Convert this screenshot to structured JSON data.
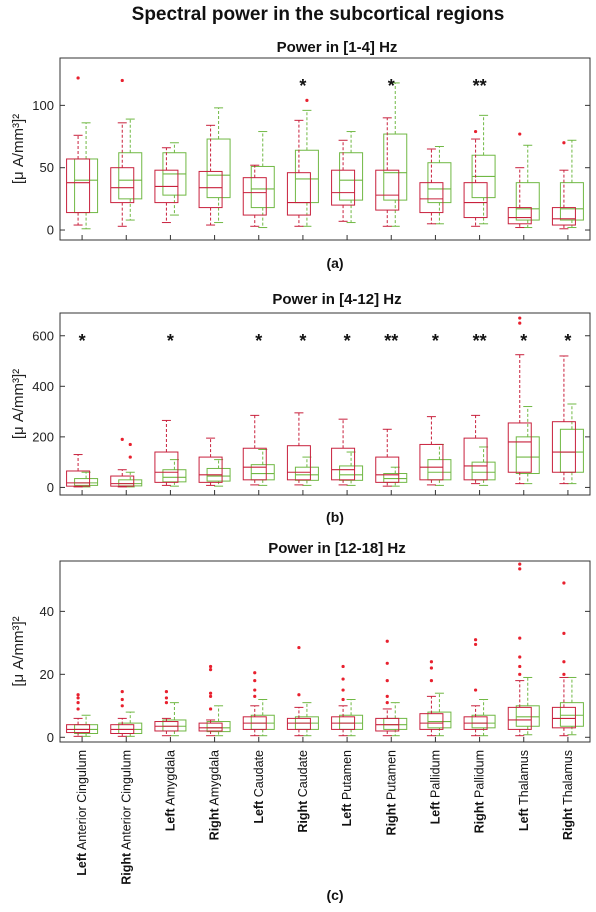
{
  "figure": {
    "title": "Spectral power in the subcortical regions"
  },
  "colors": {
    "group_a": "#70b844",
    "group_b": "#c8203c",
    "outlier": "#e8202e",
    "axis": "#333333",
    "text": "#111111"
  },
  "chart_data": [
    {
      "type": "box",
      "panel_label": "(a)",
      "title": "Power in [1-4] Hz",
      "ylabel": "[μ A/mm³]²",
      "ylim": [
        -8,
        138
      ],
      "yticks": [
        0,
        50,
        100
      ],
      "categories": [
        {
          "prefix": "Left",
          "name": "Anterior Cingulum"
        },
        {
          "prefix": "Right",
          "name": "Anterior Cingulum"
        },
        {
          "prefix": "Left",
          "name": "Amygdala"
        },
        {
          "prefix": "Right",
          "name": "Amygdala"
        },
        {
          "prefix": "Left",
          "name": "Caudate"
        },
        {
          "prefix": "Right",
          "name": "Caudate"
        },
        {
          "prefix": "Left",
          "name": "Putamen"
        },
        {
          "prefix": "Right",
          "name": "Putamen"
        },
        {
          "prefix": "Left",
          "name": "Pallidum"
        },
        {
          "prefix": "Right",
          "name": "Pallidum"
        },
        {
          "prefix": "Left",
          "name": "Thalamus"
        },
        {
          "prefix": "Right",
          "name": "Thalamus"
        }
      ],
      "significance": [
        "",
        "",
        "",
        "",
        "",
        "*",
        "",
        "*",
        "",
        "**",
        "",
        ""
      ],
      "series": [
        {
          "color_key": "group_a",
          "boxes": [
            {
              "min": 1,
              "q1": 14,
              "median": 40,
              "q3": 57,
              "max": 86
            },
            {
              "min": 8,
              "q1": 25,
              "median": 40,
              "q3": 62,
              "max": 89
            },
            {
              "min": 12,
              "q1": 28,
              "median": 45,
              "q3": 62,
              "max": 70
            },
            {
              "min": 6,
              "q1": 26,
              "median": 44,
              "q3": 73,
              "max": 98
            },
            {
              "min": 2,
              "q1": 18,
              "median": 33,
              "q3": 51,
              "max": 79
            },
            {
              "min": 3,
              "q1": 22,
              "median": 41,
              "q3": 64,
              "max": 96
            },
            {
              "min": 6,
              "q1": 24,
              "median": 40,
              "q3": 62,
              "max": 79
            },
            {
              "min": 3,
              "q1": 24,
              "median": 46,
              "q3": 77,
              "max": 118
            },
            {
              "min": 5,
              "q1": 22,
              "median": 33,
              "q3": 54,
              "max": 67
            },
            {
              "min": 5,
              "q1": 26,
              "median": 43,
              "q3": 60,
              "max": 92
            },
            {
              "min": 2,
              "q1": 8,
              "median": 17,
              "q3": 38,
              "max": 68
            },
            {
              "min": 2,
              "q1": 8,
              "median": 17,
              "q3": 38,
              "max": 72
            }
          ],
          "outliers": [
            [],
            [],
            [],
            [],
            [],
            [
              104
            ],
            [],
            [],
            [],
            [],
            [],
            []
          ]
        },
        {
          "color_key": "group_b",
          "boxes": [
            {
              "min": 4,
              "q1": 14,
              "median": 38,
              "q3": 57,
              "max": 76
            },
            {
              "min": 3,
              "q1": 22,
              "median": 34,
              "q3": 50,
              "max": 86
            },
            {
              "min": 6,
              "q1": 22,
              "median": 35,
              "q3": 48,
              "max": 66
            },
            {
              "min": 4,
              "q1": 18,
              "median": 34,
              "q3": 47,
              "max": 84
            },
            {
              "min": 3,
              "q1": 12,
              "median": 30,
              "q3": 42,
              "max": 52
            },
            {
              "min": 3,
              "q1": 12,
              "median": 22,
              "q3": 46,
              "max": 88
            },
            {
              "min": 7,
              "q1": 20,
              "median": 30,
              "q3": 48,
              "max": 72
            },
            {
              "min": 3,
              "q1": 16,
              "median": 28,
              "q3": 48,
              "max": 90
            },
            {
              "min": 5,
              "q1": 14,
              "median": 25,
              "q3": 38,
              "max": 65
            },
            {
              "min": 3,
              "q1": 10,
              "median": 22,
              "q3": 38,
              "max": 73
            },
            {
              "min": 2,
              "q1": 5,
              "median": 10,
              "q3": 18,
              "max": 50
            },
            {
              "min": 1,
              "q1": 4,
              "median": 9,
              "q3": 18,
              "max": 48
            }
          ],
          "outliers": [
            [
              122
            ],
            [
              120
            ],
            [],
            [],
            [],
            [],
            [],
            [],
            [],
            [
              79
            ],
            [
              77
            ],
            [
              70
            ]
          ]
        }
      ]
    },
    {
      "type": "box",
      "panel_label": "(b)",
      "title": "Power in [4-12] Hz",
      "ylabel": "[μ A/mm³]²",
      "ylim": [
        -30,
        690
      ],
      "yticks": [
        0,
        200,
        400,
        600
      ],
      "categories": [
        {
          "prefix": "Left",
          "name": "Anterior Cingulum"
        },
        {
          "prefix": "Right",
          "name": "Anterior Cingulum"
        },
        {
          "prefix": "Left",
          "name": "Amygdala"
        },
        {
          "prefix": "Right",
          "name": "Amygdala"
        },
        {
          "prefix": "Left",
          "name": "Caudate"
        },
        {
          "prefix": "Right",
          "name": "Caudate"
        },
        {
          "prefix": "Left",
          "name": "Putamen"
        },
        {
          "prefix": "Right",
          "name": "Putamen"
        },
        {
          "prefix": "Left",
          "name": "Pallidum"
        },
        {
          "prefix": "Right",
          "name": "Pallidum"
        },
        {
          "prefix": "Left",
          "name": "Thalamus"
        },
        {
          "prefix": "Right",
          "name": "Thalamus"
        }
      ],
      "significance": [
        "*",
        "",
        "*",
        "",
        "*",
        "*",
        "*",
        "**",
        "*",
        "**",
        "*",
        "*"
      ],
      "series": [
        {
          "color_key": "group_a",
          "boxes": [
            {
              "min": 2,
              "q1": 8,
              "median": 18,
              "q3": 35,
              "max": 60
            },
            {
              "min": 2,
              "q1": 6,
              "median": 15,
              "q3": 30,
              "max": 60
            },
            {
              "min": 5,
              "q1": 22,
              "median": 40,
              "q3": 70,
              "max": 110
            },
            {
              "min": 5,
              "q1": 25,
              "median": 45,
              "q3": 75,
              "max": 110
            },
            {
              "min": 8,
              "q1": 30,
              "median": 55,
              "q3": 90,
              "max": 150
            },
            {
              "min": 8,
              "q1": 28,
              "median": 50,
              "q3": 80,
              "max": 120
            },
            {
              "min": 8,
              "q1": 28,
              "median": 50,
              "q3": 85,
              "max": 140
            },
            {
              "min": 5,
              "q1": 20,
              "median": 35,
              "q3": 55,
              "max": 80
            },
            {
              "min": 8,
              "q1": 30,
              "median": 60,
              "q3": 110,
              "max": 170
            },
            {
              "min": 8,
              "q1": 30,
              "median": 60,
              "q3": 100,
              "max": 160
            },
            {
              "min": 15,
              "q1": 55,
              "median": 120,
              "q3": 200,
              "max": 320
            },
            {
              "min": 15,
              "q1": 60,
              "median": 140,
              "q3": 230,
              "max": 330
            }
          ],
          "outliers": [
            [],
            [
              120,
              170
            ],
            [],
            [],
            [],
            [],
            [],
            [],
            [],
            [],
            [],
            []
          ]
        },
        {
          "color_key": "group_b",
          "boxes": [
            {
              "min": 2,
              "q1": 5,
              "median": 18,
              "q3": 65,
              "max": 130
            },
            {
              "min": 2,
              "q1": 5,
              "median": 15,
              "q3": 45,
              "max": 70
            },
            {
              "min": 8,
              "q1": 20,
              "median": 60,
              "q3": 140,
              "max": 265
            },
            {
              "min": 8,
              "q1": 20,
              "median": 50,
              "q3": 120,
              "max": 195
            },
            {
              "min": 10,
              "q1": 30,
              "median": 80,
              "q3": 155,
              "max": 285
            },
            {
              "min": 10,
              "q1": 30,
              "median": 60,
              "q3": 165,
              "max": 295
            },
            {
              "min": 10,
              "q1": 30,
              "median": 70,
              "q3": 155,
              "max": 270
            },
            {
              "min": 5,
              "q1": 20,
              "median": 50,
              "q3": 120,
              "max": 230
            },
            {
              "min": 10,
              "q1": 30,
              "median": 80,
              "q3": 170,
              "max": 280
            },
            {
              "min": 15,
              "q1": 30,
              "median": 85,
              "q3": 195,
              "max": 285
            },
            {
              "min": 15,
              "q1": 60,
              "median": 180,
              "q3": 255,
              "max": 525
            },
            {
              "min": 15,
              "q1": 60,
              "median": 140,
              "q3": 260,
              "max": 520
            }
          ],
          "outliers": [
            [],
            [
              190
            ],
            [],
            [],
            [],
            [],
            [],
            [],
            [],
            [],
            [
              650,
              670
            ],
            []
          ]
        }
      ]
    },
    {
      "type": "box",
      "panel_label": "(c)",
      "title": "Power in [12-18] Hz",
      "ylabel": "[μ A/mm³]²",
      "ylim": [
        -1.5,
        56
      ],
      "yticks": [
        0,
        20,
        40
      ],
      "categories": [
        {
          "prefix": "Left",
          "name": "Anterior Cingulum"
        },
        {
          "prefix": "Right",
          "name": "Anterior Cingulum"
        },
        {
          "prefix": "Left",
          "name": "Amygdala"
        },
        {
          "prefix": "Right",
          "name": "Amygdala"
        },
        {
          "prefix": "Left",
          "name": "Caudate"
        },
        {
          "prefix": "Right",
          "name": "Caudate"
        },
        {
          "prefix": "Left",
          "name": "Putamen"
        },
        {
          "prefix": "Right",
          "name": "Putamen"
        },
        {
          "prefix": "Left",
          "name": "Pallidum"
        },
        {
          "prefix": "Right",
          "name": "Pallidum"
        },
        {
          "prefix": "Left",
          "name": "Thalamus"
        },
        {
          "prefix": "Right",
          "name": "Thalamus"
        }
      ],
      "significance": [
        "",
        "",
        "",
        "",
        "",
        "",
        "",
        "",
        "",
        "",
        "",
        ""
      ],
      "series": [
        {
          "color_key": "group_a",
          "boxes": [
            {
              "min": 0.3,
              "q1": 1.2,
              "median": 2.5,
              "q3": 4,
              "max": 7
            },
            {
              "min": 0.3,
              "q1": 1.2,
              "median": 2.5,
              "q3": 4.5,
              "max": 8
            },
            {
              "min": 0.5,
              "q1": 2,
              "median": 3.5,
              "q3": 5.5,
              "max": 11
            },
            {
              "min": 0.5,
              "q1": 1.8,
              "median": 3,
              "q3": 5,
              "max": 10
            },
            {
              "min": 0.5,
              "q1": 2.5,
              "median": 4.5,
              "q3": 7,
              "max": 12
            },
            {
              "min": 0.5,
              "q1": 2.5,
              "median": 4.5,
              "q3": 6.5,
              "max": 11
            },
            {
              "min": 0.5,
              "q1": 2.5,
              "median": 4.5,
              "q3": 7,
              "max": 12
            },
            {
              "min": 0.5,
              "q1": 2.5,
              "median": 4,
              "q3": 6,
              "max": 11
            },
            {
              "min": 0.5,
              "q1": 3,
              "median": 5,
              "q3": 8,
              "max": 14
            },
            {
              "min": 0.5,
              "q1": 3,
              "median": 4.5,
              "q3": 7,
              "max": 12
            },
            {
              "min": 0.8,
              "q1": 3.5,
              "median": 6.5,
              "q3": 10,
              "max": 19
            },
            {
              "min": 0.8,
              "q1": 3.5,
              "median": 7,
              "q3": 11,
              "max": 19
            }
          ],
          "outliers": [
            [],
            [],
            [],
            [],
            [],
            [],
            [],
            [],
            [],
            [],
            [],
            []
          ]
        },
        {
          "color_key": "group_b",
          "boxes": [
            {
              "min": 0.3,
              "q1": 1.5,
              "median": 2.5,
              "q3": 4,
              "max": 6
            },
            {
              "min": 0.3,
              "q1": 1.2,
              "median": 2.5,
              "q3": 4,
              "max": 6
            },
            {
              "min": 0.5,
              "q1": 2,
              "median": 3.5,
              "q3": 5,
              "max": 6
            },
            {
              "min": 0.5,
              "q1": 2,
              "median": 3,
              "q3": 4.5,
              "max": 5.5
            },
            {
              "min": 0.5,
              "q1": 2.5,
              "median": 4.5,
              "q3": 6.5,
              "max": 10
            },
            {
              "min": 0.5,
              "q1": 2.5,
              "median": 4.5,
              "q3": 6,
              "max": 9.5
            },
            {
              "min": 0.5,
              "q1": 2.5,
              "median": 4.5,
              "q3": 6.5,
              "max": 10
            },
            {
              "min": 0.5,
              "q1": 2,
              "median": 4,
              "q3": 6,
              "max": 9
            },
            {
              "min": 0.5,
              "q1": 2.5,
              "median": 4.5,
              "q3": 7.5,
              "max": 13
            },
            {
              "min": 0.5,
              "q1": 2.5,
              "median": 4.5,
              "q3": 6.5,
              "max": 10
            },
            {
              "min": 0.5,
              "q1": 2.5,
              "median": 5.5,
              "q3": 9.5,
              "max": 18
            },
            {
              "min": 0.5,
              "q1": 3,
              "median": 6,
              "q3": 9.5,
              "max": 19
            }
          ],
          "outliers": [
            [
              9,
              11,
              12.5,
              13.5
            ],
            [
              10,
              12,
              14.5
            ],
            [
              11,
              12.5,
              14.5
            ],
            [
              9,
              13,
              14,
              21.5,
              22.5
            ],
            [
              13,
              15,
              18,
              20.5
            ],
            [
              13.5,
              28.5
            ],
            [
              12,
              15,
              18.5,
              22.5
            ],
            [
              11,
              13,
              18,
              23.5,
              30.5
            ],
            [
              18,
              22,
              24
            ],
            [
              15,
              29.5,
              31
            ],
            [
              20,
              22.5,
              25.5,
              31.5,
              53.5,
              55
            ],
            [
              20,
              24,
              33,
              49
            ]
          ]
        }
      ]
    }
  ]
}
